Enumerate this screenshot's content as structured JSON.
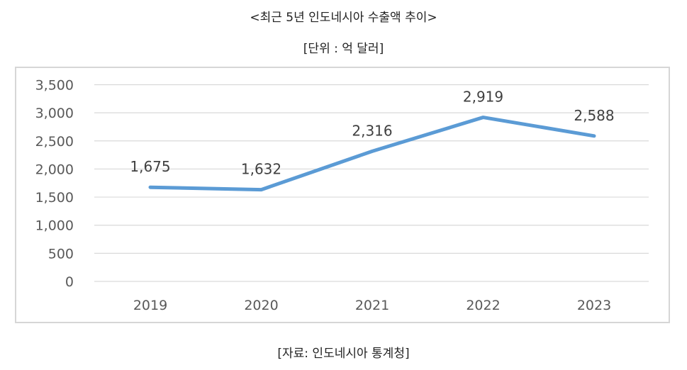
{
  "header": {
    "title": "<최근 5년 인도네시아 수출액 추이>",
    "unit": "[단위 : 억 달러]"
  },
  "footer": {
    "source": "[자료: 인도네시아 통계청]"
  },
  "chart_data": {
    "type": "line",
    "title": "<최근 5년 인도네시아 수출액 추이>",
    "xlabel": "",
    "ylabel": "",
    "categories": [
      "2019",
      "2020",
      "2021",
      "2022",
      "2023"
    ],
    "series": [
      {
        "values": [
          1675,
          1632,
          2316,
          2919,
          2588
        ],
        "color": "#5b9bd5"
      }
    ],
    "data_labels": [
      "1,675",
      "1,632",
      "2,316",
      "2,919",
      "2,588"
    ],
    "ylim": [
      0,
      3500
    ],
    "yticks": [
      0,
      500,
      1000,
      1500,
      2000,
      2500,
      3000,
      3500
    ],
    "ytick_labels": [
      "0",
      "500",
      "1,000",
      "1,500",
      "2,000",
      "2,500",
      "3,000",
      "3,500"
    ],
    "grid": true,
    "legend": "none"
  }
}
